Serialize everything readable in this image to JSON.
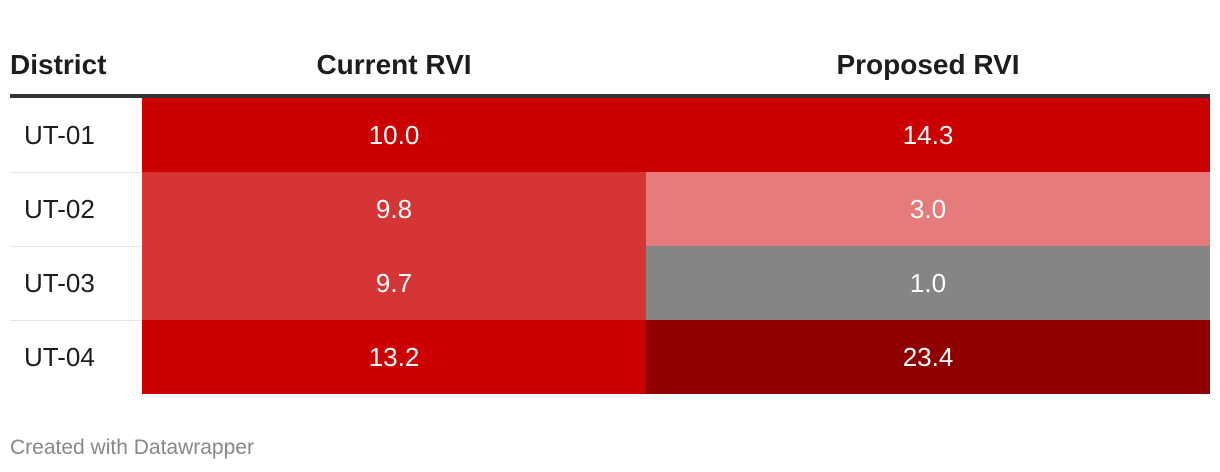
{
  "chart_data": {
    "type": "table",
    "columns": [
      "District",
      "Current RVI",
      "Proposed RVI"
    ],
    "rows": [
      {
        "district": "UT-01",
        "current": "10.0",
        "proposed": "14.3",
        "current_color": "#cc0000",
        "proposed_color": "#cc0000"
      },
      {
        "district": "UT-02",
        "current": "9.8",
        "proposed": "3.0",
        "current_color": "#d63535",
        "proposed_color": "#e57b7b"
      },
      {
        "district": "UT-03",
        "current": "9.7",
        "proposed": "1.0",
        "current_color": "#d63535",
        "proposed_color": "#858585"
      },
      {
        "district": "UT-04",
        "current": "13.2",
        "proposed": "23.4",
        "current_color": "#cc0000",
        "proposed_color": "#8f0000"
      }
    ]
  },
  "footer": "Created with Datawrapper"
}
